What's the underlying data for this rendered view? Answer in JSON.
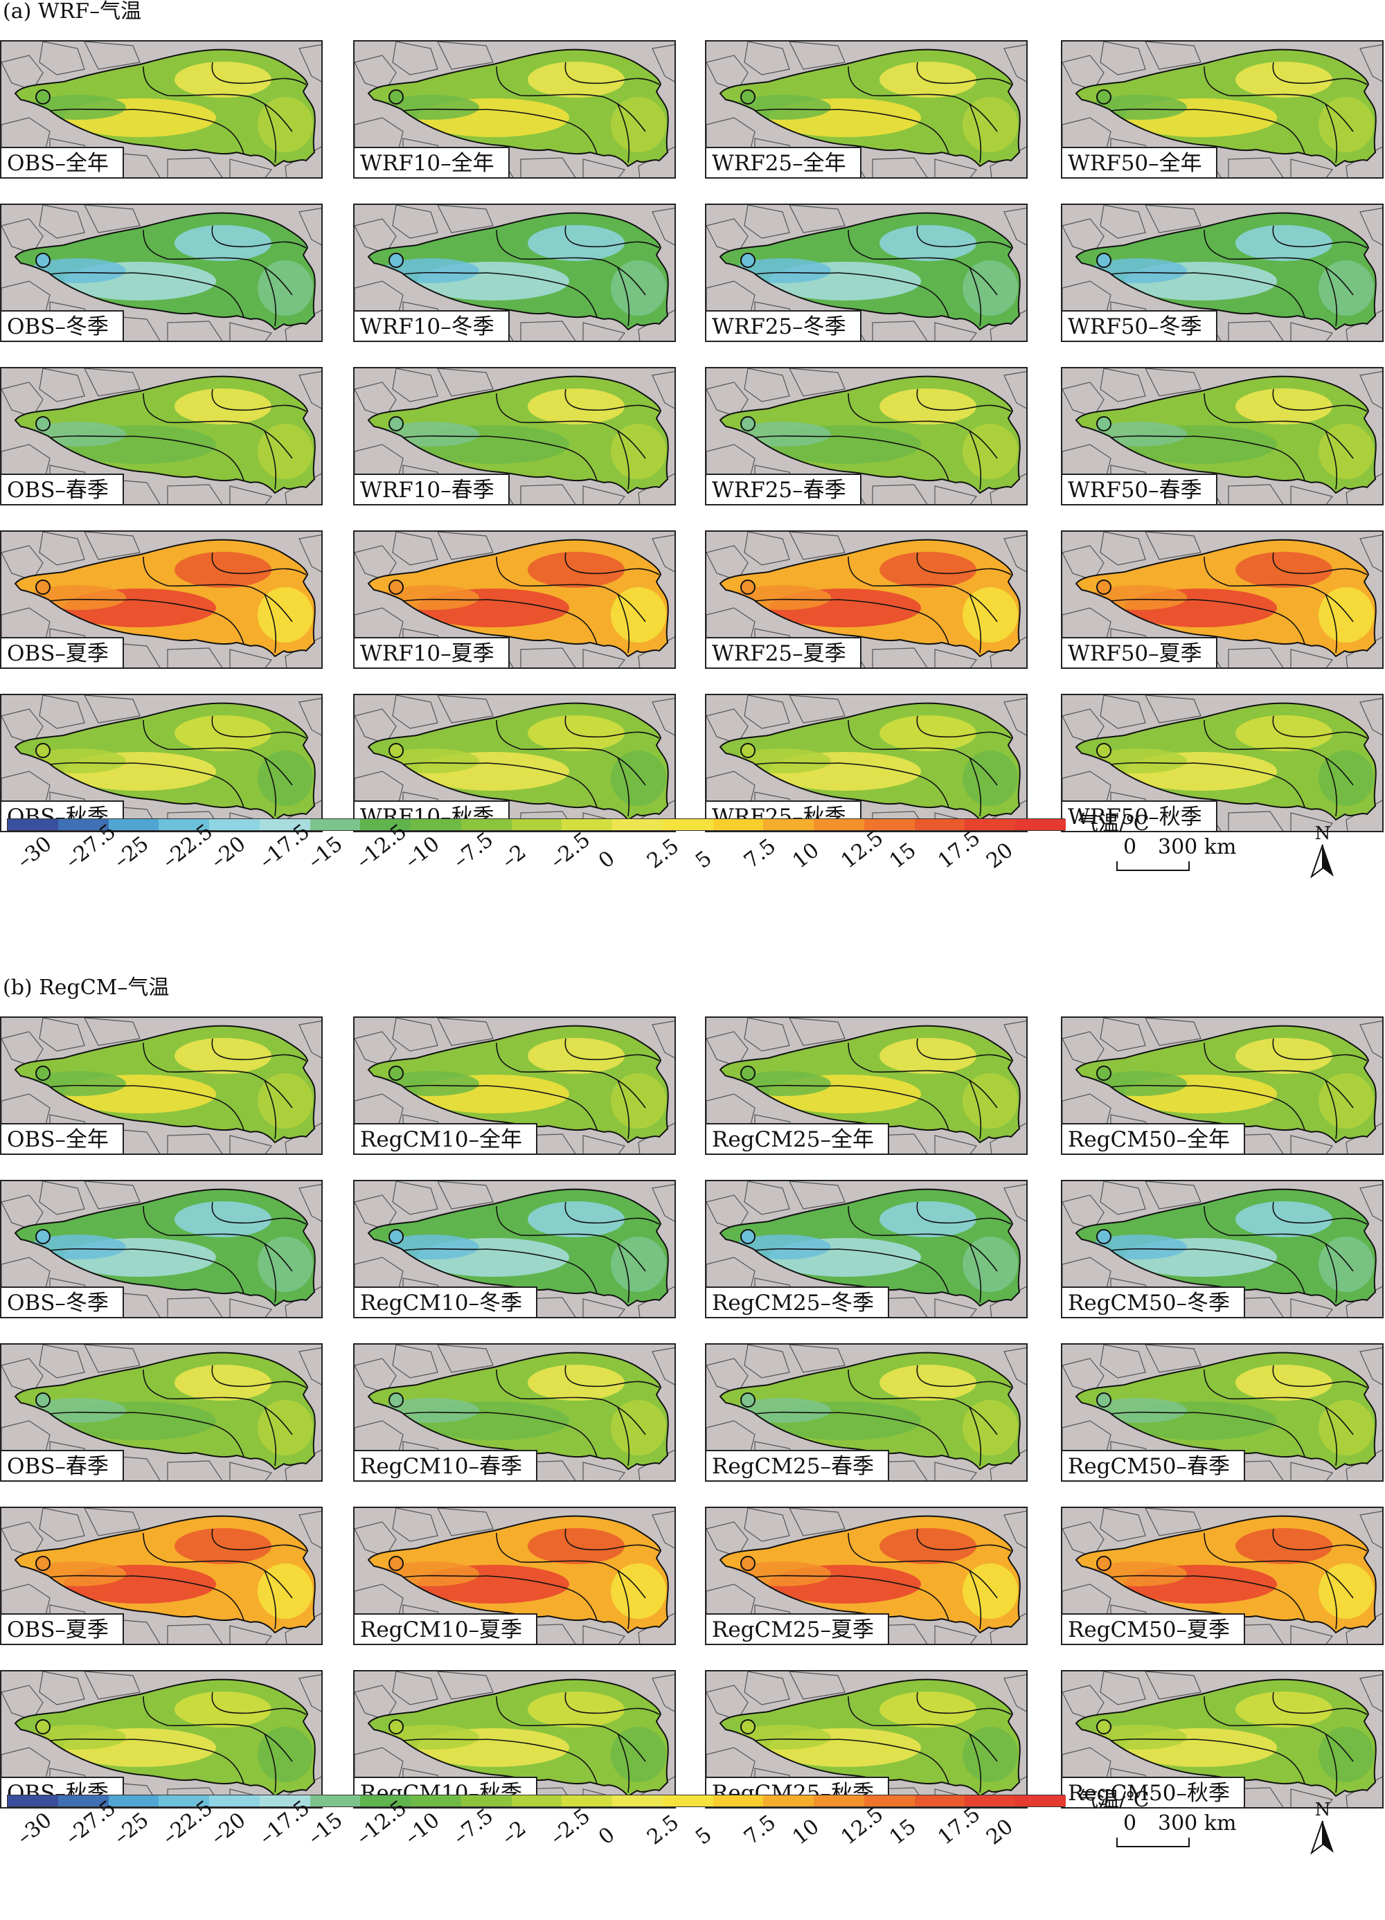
{
  "sections": [
    {
      "title": "(a) WRF–气温",
      "rows": [
        [
          "OBS–全年",
          "WRF10–全年",
          "WRF25–全年",
          "WRF50–全年"
        ],
        [
          "OBS–冬季",
          "WRF10–冬季",
          "WRF25–冬季",
          "WRF50–冬季"
        ],
        [
          "OBS–春季",
          "WRF10–春季",
          "WRF25–春季",
          "WRF50–春季"
        ],
        [
          "OBS–夏季",
          "WRF10–夏季",
          "WRF25–夏季",
          "WRF50–夏季"
        ],
        [
          "OBS–秋季",
          "WRF10–秋季",
          "WRF25–秋季",
          "WRF50–秋季"
        ]
      ],
      "season_keys": [
        "annual",
        "winter",
        "spring",
        "summer",
        "autumn"
      ]
    },
    {
      "title": "(b) RegCM–气温",
      "rows": [
        [
          "OBS–全年",
          "RegCM10–全年",
          "RegCM25–全年",
          "RegCM50–全年"
        ],
        [
          "OBS–冬季",
          "RegCM10–冬季",
          "RegCM25–冬季",
          "RegCM50–冬季"
        ],
        [
          "OBS–春季",
          "RegCM10–春季",
          "RegCM25–春季",
          "RegCM50–春季"
        ],
        [
          "OBS–夏季",
          "RegCM10–夏季",
          "RegCM25–夏季",
          "RegCM50–夏季"
        ],
        [
          "OBS–秋季",
          "RegCM10–秋季",
          "RegCM25–秋季",
          "RegCM50–秋季"
        ]
      ],
      "season_keys": [
        "annual",
        "winter",
        "spring",
        "summer",
        "autumn"
      ]
    }
  ],
  "legend": {
    "unit": "气温/℃",
    "ticks": [
      "–30",
      "–27.5",
      "–25",
      "–22.5",
      "–20",
      "–17.5",
      "–15",
      "–12.5",
      "–10",
      "–7.5",
      "–2",
      "–2.5",
      "0",
      "2.5",
      "5",
      "7.5",
      "10",
      "12.5",
      "15",
      "17.5",
      "20"
    ],
    "colors": [
      "#3a4f9e",
      "#3f6fb4",
      "#4fa6d2",
      "#6cc0da",
      "#8ed4e2",
      "#a8dde0",
      "#7cc48c",
      "#5fb44e",
      "#6fba45",
      "#8cc43e",
      "#b2d23c",
      "#d3df3e",
      "#eee650",
      "#f5e23c",
      "#f8cd2c",
      "#f6ad2c",
      "#f3912b",
      "#ef752c",
      "#ea5a2c",
      "#e8432e",
      "#e63930"
    ]
  },
  "scale": {
    "zero": "0",
    "distance": "300 km"
  },
  "north": "N",
  "colors": {
    "background": "#c8c2c2",
    "boundary": "#111111"
  }
}
